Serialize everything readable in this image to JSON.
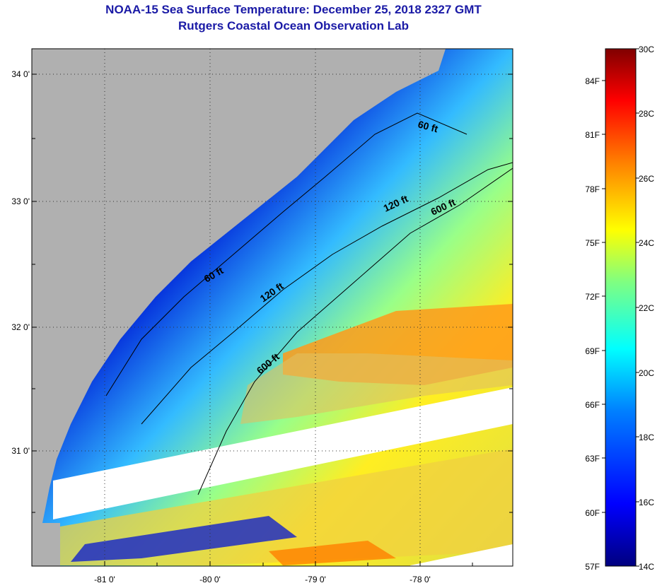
{
  "header": {
    "title": "NOAA-15 Sea Surface Temperature:  December 25, 2018 2327 GMT",
    "subtitle": "Rutgers Coastal Ocean Observation Lab"
  },
  "map": {
    "lat_labels": [
      "34 0'",
      "33 0'",
      "32 0'",
      "31 0'"
    ],
    "lon_labels": [
      "-81 0'",
      "-80 0'",
      "-79 0'",
      "-78 0'"
    ],
    "depth_labels": [
      "60 ft",
      "120 ft",
      "600 ft",
      "60 ft",
      "120 ft",
      "600 ft"
    ]
  },
  "colorbar": {
    "celsius_labels": [
      "30C",
      "28C",
      "26C",
      "24C",
      "22C",
      "20C",
      "18C",
      "16C",
      "14C"
    ],
    "fahrenheit_labels": [
      "84F",
      "81F",
      "78F",
      "75F",
      "72F",
      "69F",
      "66F",
      "63F",
      "60F",
      "57F"
    ],
    "colors": [
      "#00007f",
      "#0000ff",
      "#0080ff",
      "#00ffff",
      "#80ff80",
      "#ffff00",
      "#ff8000",
      "#ff0000",
      "#800000"
    ]
  },
  "colors": {
    "land": "#b0b0b0",
    "swath_gap": "#ffffff",
    "title": "#1a1aa6"
  }
}
